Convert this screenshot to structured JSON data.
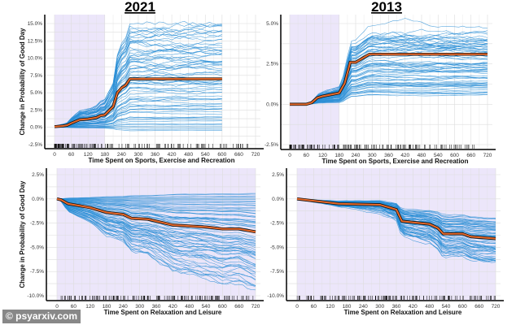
{
  "watermark": "© psyarxiv.com",
  "colors": {
    "ice": "#2b8fd6",
    "pdp": "#e8692a",
    "pdp_outline": "#111111",
    "shade": "#ece6fa",
    "grid": "#dddddd"
  },
  "chart_data": [
    {
      "type": "line",
      "title": "2021",
      "xlabel": "Time Spent on Sports, Exercise and Recreation",
      "ylabel": "Change in Probability of Good Day",
      "xlim": [
        0,
        720
      ],
      "ylim": [
        -2.5,
        15
      ],
      "xticks": [
        "0",
        "60",
        "120",
        "180",
        "240",
        "300",
        "360",
        "420",
        "480",
        "540",
        "600",
        "660",
        "720"
      ],
      "yticks": [
        "-2.5%",
        "0.0%",
        "2.5%",
        "5.0%",
        "7.5%",
        "10.0%",
        "12.5%",
        "15.0%"
      ],
      "shaded_x": [
        0,
        180
      ],
      "average": {
        "x": [
          0,
          30,
          45,
          60,
          90,
          120,
          150,
          165,
          180,
          210,
          225,
          240,
          255,
          270,
          600
        ],
        "y": [
          0.1,
          0.2,
          0.3,
          0.6,
          1.1,
          1.2,
          1.4,
          1.7,
          1.8,
          3.0,
          5.0,
          5.7,
          6.1,
          7.0,
          7.0
        ]
      },
      "ice_end_range": [
        -0.5,
        14.7
      ]
    },
    {
      "type": "line",
      "title": "2013",
      "xlabel": "Time Spent on Sports, Exercise and Recreation",
      "ylabel": "",
      "xlim": [
        0,
        720
      ],
      "ylim": [
        -2.5,
        5
      ],
      "xticks": [
        "0",
        "60",
        "120",
        "180",
        "240",
        "300",
        "360",
        "420",
        "480",
        "540",
        "600",
        "660",
        "720"
      ],
      "yticks": [
        "-2.5%",
        "0.0%",
        "2.5%",
        "5.0%"
      ],
      "shaded_x": [
        0,
        180
      ],
      "average": {
        "x": [
          0,
          60,
          80,
          100,
          120,
          180,
          200,
          220,
          240,
          270,
          290,
          720
        ],
        "y": [
          0,
          0,
          0.1,
          0.4,
          0.5,
          0.7,
          1.3,
          2.6,
          2.6,
          2.9,
          3.1,
          3.1
        ]
      },
      "ice_end_range": [
        0.6,
        4.5
      ]
    },
    {
      "type": "line",
      "title": "",
      "xlabel": "Time Spent on Relaxation and Leisure",
      "ylabel": "Change in Probability of Good Day",
      "xlim": [
        0,
        720
      ],
      "ylim": [
        -10,
        2.5
      ],
      "xticks": [
        "0",
        "60",
        "120",
        "180",
        "240",
        "300",
        "360",
        "420",
        "480",
        "540",
        "600",
        "660",
        "720"
      ],
      "yticks": [
        "-10.0%",
        "-7.5%",
        "-5.0%",
        "-2.5%",
        "0.0%",
        "2.5%"
      ],
      "shaded_x": [
        0,
        720
      ],
      "average": {
        "x": [
          0,
          15,
          40,
          120,
          180,
          240,
          270,
          330,
          420,
          540,
          600,
          660,
          720
        ],
        "y": [
          0,
          -0.1,
          -0.5,
          -0.9,
          -1.4,
          -1.6,
          -2.0,
          -2.1,
          -2.7,
          -2.9,
          -3.1,
          -3.1,
          -3.4
        ]
      },
      "ice_end_range": [
        -8.8,
        0.6
      ]
    },
    {
      "type": "line",
      "title": "",
      "xlabel": "Time Spent on Relaxation and Leisure",
      "ylabel": "",
      "xlim": [
        0,
        720
      ],
      "ylim": [
        -10,
        2.5
      ],
      "xticks": [
        "0",
        "60",
        "120",
        "180",
        "240",
        "300",
        "360",
        "420",
        "480",
        "540",
        "600",
        "660",
        "720"
      ],
      "yticks": [
        "-10.0%",
        "-7.5%",
        "-5.0%",
        "-2.5%",
        "0.0%",
        "2.5%"
      ],
      "shaded_x": [
        0,
        720
      ],
      "average": {
        "x": [
          0,
          150,
          300,
          360,
          380,
          480,
          510,
          530,
          600,
          630,
          720
        ],
        "y": [
          0,
          -0.5,
          -0.6,
          -1.1,
          -2.3,
          -2.6,
          -3.0,
          -3.6,
          -3.6,
          -3.9,
          -4.1
        ]
      },
      "ice_end_range": [
        -6.2,
        -2.1
      ]
    }
  ]
}
